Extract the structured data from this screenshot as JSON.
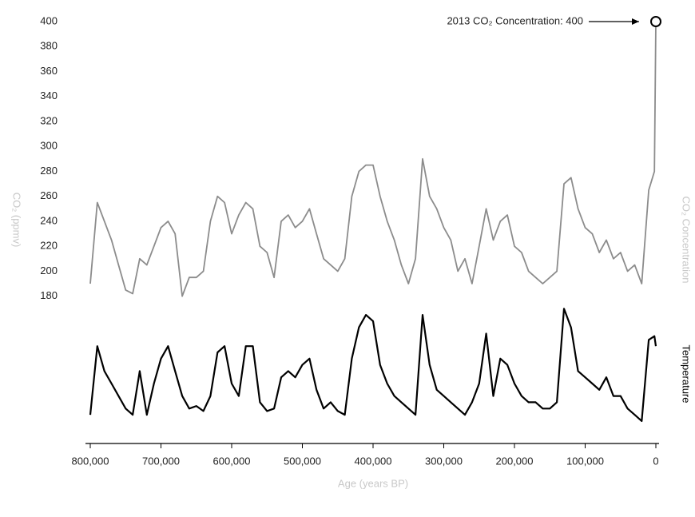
{
  "chart_data": {
    "type": "line",
    "y_label": "CO₂ (ppmv)",
    "x_label": "Age (years BP)",
    "annotation": "2013 CO₂ Concentration: 400",
    "x": [
      800000,
      790000,
      780000,
      770000,
      760000,
      750000,
      740000,
      730000,
      720000,
      710000,
      700000,
      690000,
      680000,
      670000,
      660000,
      650000,
      640000,
      630000,
      620000,
      610000,
      600000,
      590000,
      580000,
      570000,
      560000,
      550000,
      540000,
      530000,
      520000,
      510000,
      500000,
      490000,
      480000,
      470000,
      460000,
      450000,
      440000,
      430000,
      420000,
      410000,
      400000,
      390000,
      380000,
      370000,
      360000,
      350000,
      340000,
      330000,
      320000,
      310000,
      300000,
      290000,
      280000,
      270000,
      260000,
      250000,
      240000,
      230000,
      220000,
      210000,
      200000,
      190000,
      180000,
      170000,
      160000,
      150000,
      140000,
      130000,
      120000,
      110000,
      100000,
      90000,
      80000,
      70000,
      60000,
      50000,
      40000,
      30000,
      20000,
      10000,
      2000,
      0
    ],
    "series": [
      {
        "name": "CO₂ Concentration",
        "color": "#8c8c8c",
        "values": [
          190,
          255,
          240,
          225,
          205,
          185,
          182,
          210,
          205,
          220,
          235,
          240,
          230,
          180,
          195,
          195,
          200,
          240,
          260,
          255,
          230,
          245,
          255,
          250,
          220,
          215,
          195,
          240,
          245,
          235,
          240,
          250,
          230,
          210,
          205,
          200,
          210,
          260,
          280,
          285,
          285,
          260,
          240,
          225,
          205,
          190,
          210,
          290,
          260,
          250,
          235,
          225,
          200,
          210,
          190,
          220,
          250,
          225,
          240,
          245,
          220,
          215,
          200,
          195,
          190,
          195,
          200,
          270,
          275,
          250,
          235,
          230,
          215,
          225,
          210,
          215,
          200,
          205,
          190,
          265,
          280,
          400
        ]
      },
      {
        "name": "Temperature",
        "color": "#000000",
        "values": [
          85,
          140,
          120,
          110,
          100,
          90,
          85,
          120,
          85,
          110,
          130,
          140,
          120,
          100,
          90,
          92,
          88,
          100,
          135,
          140,
          110,
          100,
          140,
          140,
          95,
          88,
          90,
          115,
          120,
          115,
          125,
          130,
          105,
          90,
          95,
          88,
          85,
          130,
          155,
          165,
          160,
          125,
          110,
          100,
          95,
          90,
          85,
          165,
          125,
          105,
          100,
          95,
          90,
          85,
          95,
          110,
          150,
          100,
          130,
          125,
          110,
          100,
          95,
          95,
          90,
          90,
          95,
          170,
          155,
          120,
          115,
          110,
          105,
          115,
          100,
          100,
          90,
          85,
          80,
          145,
          148,
          140
        ]
      }
    ],
    "xlim": [
      800000,
      0
    ],
    "xticks": [
      {
        "value": 800000,
        "label": "800,000"
      },
      {
        "value": 700000,
        "label": "700,000"
      },
      {
        "value": 600000,
        "label": "600,000"
      },
      {
        "value": 500000,
        "label": "500,000"
      },
      {
        "value": 400000,
        "label": "400,000"
      },
      {
        "value": 300000,
        "label": "300,000"
      },
      {
        "value": 200000,
        "label": "200,000"
      },
      {
        "value": 100000,
        "label": "100,000"
      },
      0
    ],
    "ylim": [
      62,
      400
    ],
    "yticks": [
      180,
      200,
      220,
      240,
      260,
      280,
      300,
      320,
      340,
      360,
      380,
      400
    ]
  }
}
